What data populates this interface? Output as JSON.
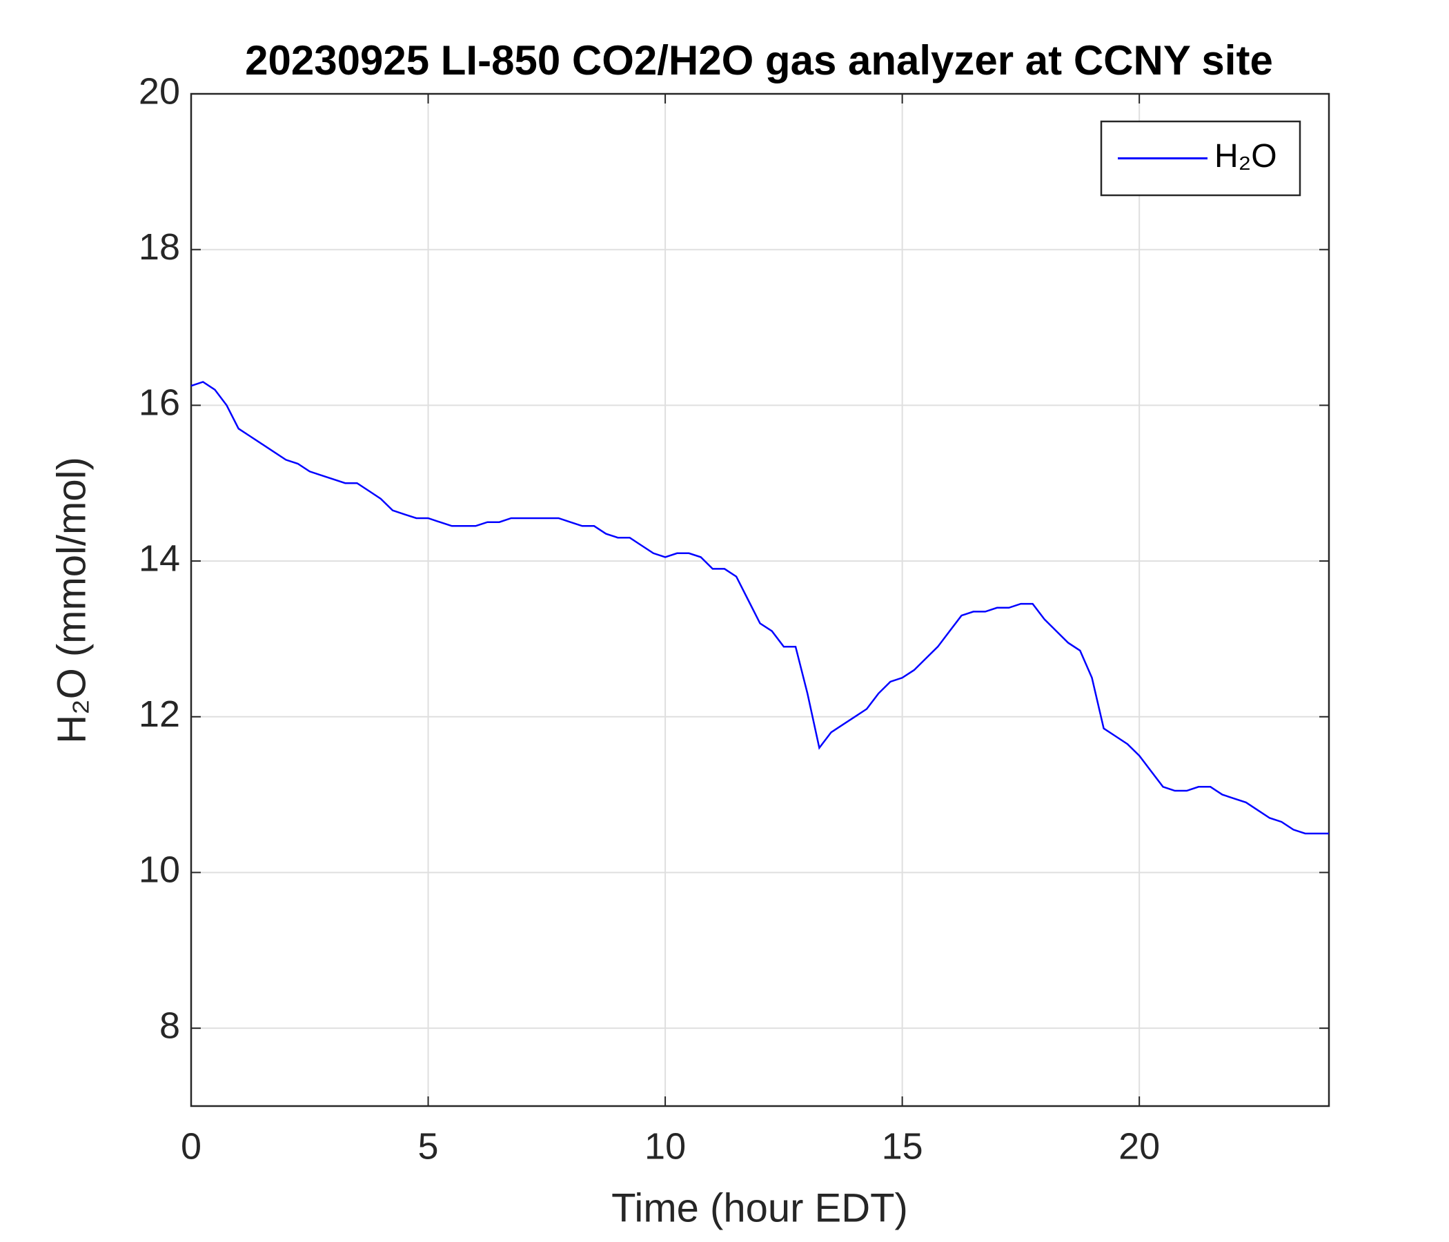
{
  "chart_data": {
    "type": "line",
    "title": "20230925 LI-850 CO2/H2O gas analyzer at CCNY site",
    "xlabel": "Time (hour EDT)",
    "ylabel": "H₂O (mmol/mol)",
    "x": [
      0,
      0.25,
      0.5,
      0.75,
      1,
      1.25,
      1.5,
      1.75,
      2,
      2.25,
      2.5,
      2.75,
      3,
      3.25,
      3.5,
      3.75,
      4,
      4.25,
      4.5,
      4.75,
      5,
      5.25,
      5.5,
      5.75,
      6,
      6.25,
      6.5,
      6.75,
      7,
      7.25,
      7.5,
      7.75,
      8,
      8.25,
      8.5,
      8.75,
      9,
      9.25,
      9.5,
      9.75,
      10,
      10.25,
      10.5,
      10.75,
      11,
      11.25,
      11.5,
      11.75,
      12,
      12.25,
      12.5,
      12.75,
      13,
      13.25,
      13.5,
      13.75,
      14,
      14.25,
      14.5,
      14.75,
      15,
      15.25,
      15.5,
      15.75,
      16,
      16.25,
      16.5,
      16.75,
      17,
      17.25,
      17.5,
      17.75,
      18,
      18.25,
      18.5,
      18.75,
      19,
      19.25,
      19.5,
      19.75,
      20,
      20.25,
      20.5,
      20.75,
      21,
      21.25,
      21.5,
      21.75,
      22,
      22.25,
      22.5,
      22.75,
      23,
      23.25,
      23.5,
      23.75,
      24
    ],
    "series": [
      {
        "name": "H₂O",
        "color": "#0000ff",
        "values": [
          16.25,
          16.3,
          16.2,
          16.0,
          15.7,
          15.6,
          15.5,
          15.4,
          15.3,
          15.25,
          15.15,
          15.1,
          15.05,
          15.0,
          15.0,
          14.9,
          14.8,
          14.65,
          14.6,
          14.55,
          14.55,
          14.5,
          14.45,
          14.45,
          14.45,
          14.5,
          14.5,
          14.55,
          14.55,
          14.55,
          14.55,
          14.55,
          14.5,
          14.45,
          14.45,
          14.35,
          14.3,
          14.3,
          14.2,
          14.1,
          14.05,
          14.1,
          14.1,
          14.05,
          13.9,
          13.9,
          13.8,
          13.5,
          13.2,
          13.1,
          12.9,
          12.9,
          12.3,
          11.6,
          11.8,
          11.9,
          12.0,
          12.1,
          12.3,
          12.45,
          12.5,
          12.6,
          12.75,
          12.9,
          13.1,
          13.3,
          13.35,
          13.35,
          13.4,
          13.4,
          13.45,
          13.45,
          13.25,
          13.1,
          12.95,
          12.85,
          12.5,
          11.85,
          11.75,
          11.65,
          11.5,
          11.3,
          11.1,
          11.05,
          11.05,
          11.1,
          11.1,
          11.0,
          10.95,
          10.9,
          10.8,
          10.7,
          10.65,
          10.55,
          10.5,
          10.5,
          10.5
        ]
      }
    ],
    "xlim": [
      0,
      24
    ],
    "xticks": [
      0,
      5,
      10,
      15,
      20
    ],
    "ylim": [
      7,
      20
    ],
    "yticks": [
      8,
      10,
      12,
      14,
      16,
      18,
      20
    ],
    "grid": true,
    "legend": "upper right"
  }
}
